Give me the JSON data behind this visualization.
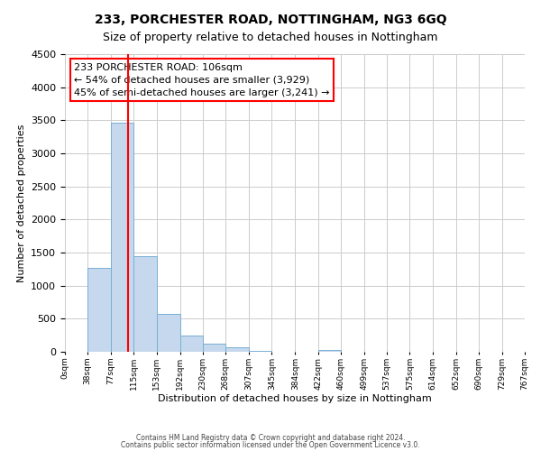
{
  "title": "233, PORCHESTER ROAD, NOTTINGHAM, NG3 6GQ",
  "subtitle": "Size of property relative to detached houses in Nottingham",
  "xlabel": "Distribution of detached houses by size in Nottingham",
  "ylabel": "Number of detached properties",
  "bin_edges": [
    0,
    38,
    77,
    115,
    153,
    192,
    230,
    268,
    307,
    345,
    384,
    422,
    460,
    499,
    537,
    575,
    614,
    652,
    690,
    729,
    767
  ],
  "bar_heights": [
    5,
    1270,
    3470,
    1440,
    570,
    240,
    120,
    70,
    20,
    0,
    0,
    30,
    0,
    0,
    0,
    0,
    0,
    0,
    0,
    0
  ],
  "bar_color": "#c5d8ed",
  "bar_edgecolor": "#7aafd4",
  "grid_color": "#cccccc",
  "background_color": "#ffffff",
  "vline_x": 106,
  "vline_color": "red",
  "annotation_title": "233 PORCHESTER ROAD: 106sqm",
  "annotation_line1": "← 54% of detached houses are smaller (3,929)",
  "annotation_line2": "45% of semi-detached houses are larger (3,241) →",
  "annotation_box_color": "white",
  "annotation_box_edgecolor": "red",
  "ylim": [
    0,
    4500
  ],
  "yticks": [
    0,
    500,
    1000,
    1500,
    2000,
    2500,
    3000,
    3500,
    4000,
    4500
  ],
  "footer1": "Contains HM Land Registry data © Crown copyright and database right 2024.",
  "footer2": "Contains public sector information licensed under the Open Government Licence v3.0.",
  "title_fontsize": 10,
  "subtitle_fontsize": 9,
  "xlabel_fontsize": 8,
  "ylabel_fontsize": 8,
  "xtick_fontsize": 6.5,
  "ytick_fontsize": 8,
  "annotation_fontsize": 8,
  "footer_fontsize": 5.5
}
